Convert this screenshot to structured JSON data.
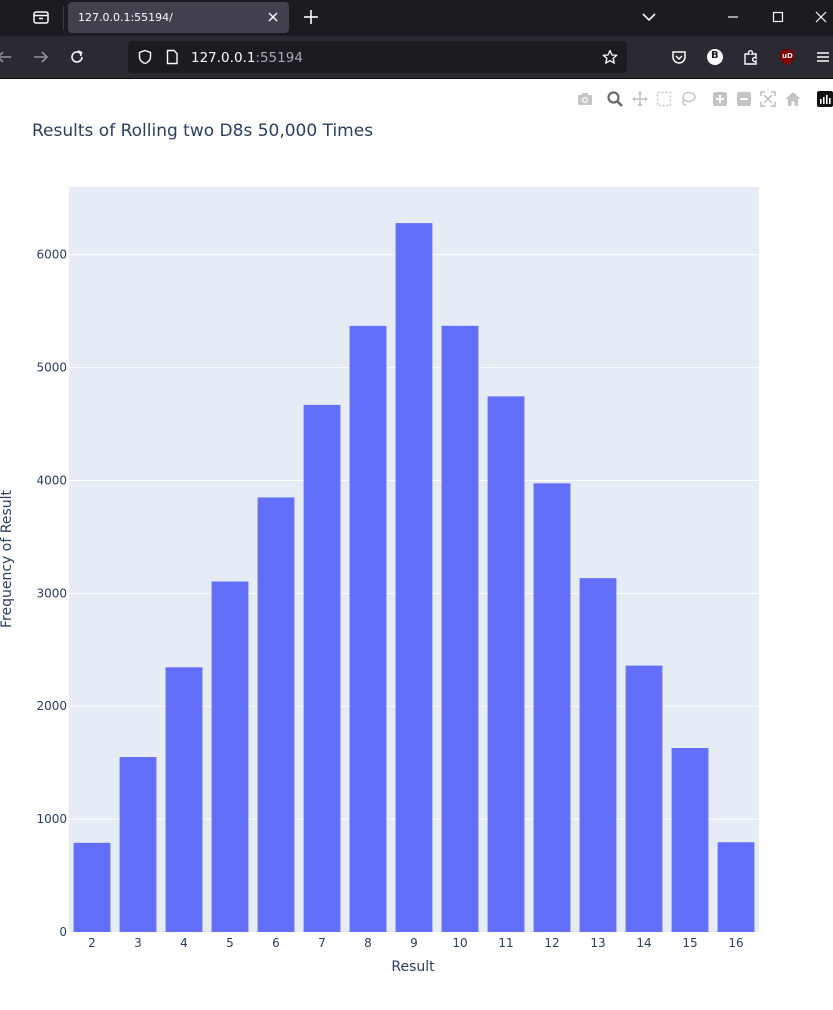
{
  "browser": {
    "tab_title": "127.0.0.1:55194/",
    "url_host": "127.0.0.1",
    "url_port": ":55194",
    "extension_badge": "B",
    "ublock_badge": "uD"
  },
  "modebar": {
    "buttons": [
      "camera-icon",
      "zoom-icon",
      "pan-icon",
      "box-select-icon",
      "lasso-icon",
      "zoom-in-icon",
      "zoom-out-icon",
      "autoscale-icon",
      "reset-axes-icon",
      "plotly-logo-icon"
    ]
  },
  "colors": {
    "bar": "#636efa",
    "plot_bg": "#e5ecf6",
    "text": "#2a3f5f",
    "grid": "#ffffff"
  },
  "chart_data": {
    "type": "bar",
    "title": "Results of Rolling two D8s 50,000 Times",
    "xlabel": "Result",
    "ylabel": "Frequency of Result",
    "categories": [
      "2",
      "3",
      "4",
      "5",
      "6",
      "7",
      "8",
      "9",
      "10",
      "11",
      "12",
      "13",
      "14",
      "15",
      "16"
    ],
    "values": [
      790,
      1550,
      2345,
      3105,
      3850,
      4670,
      5370,
      6280,
      5370,
      4745,
      3975,
      3135,
      2360,
      1630,
      795
    ],
    "ylim": [
      0,
      6600
    ],
    "yticks": [
      0,
      1000,
      2000,
      3000,
      4000,
      5000,
      6000
    ],
    "grid": true,
    "legend": "none"
  }
}
